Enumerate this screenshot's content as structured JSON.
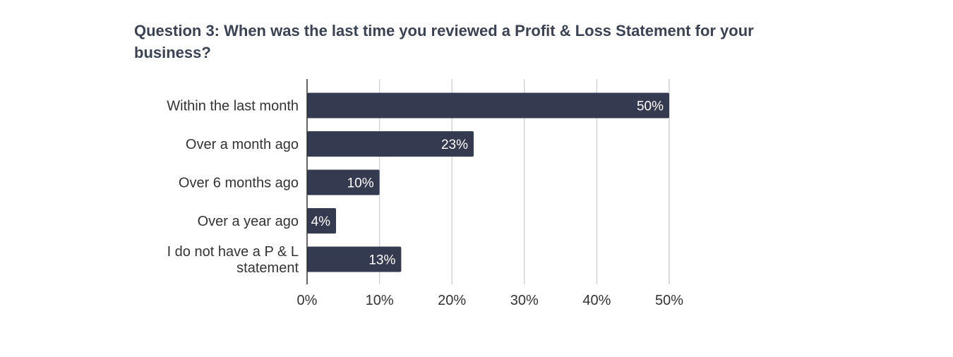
{
  "chart_data": {
    "type": "bar",
    "orientation": "horizontal",
    "title": "Question 3: When was the last time you reviewed a Profit & Loss Statement for your business?",
    "categories": [
      "Within the last month",
      "Over a month ago",
      "Over 6 months ago",
      "Over a year ago",
      "I do not have a P & L statement"
    ],
    "category_lines": [
      [
        "Within the last month"
      ],
      [
        "Over a month ago"
      ],
      [
        "Over 6 months ago"
      ],
      [
        "Over a year ago"
      ],
      [
        "I do not have a P & L",
        "statement"
      ]
    ],
    "values": [
      50,
      23,
      10,
      4,
      13
    ],
    "data_labels": [
      "50%",
      "23%",
      "10%",
      "4%",
      "13%"
    ],
    "xlim": [
      0,
      50
    ],
    "x_ticks": [
      0,
      10,
      20,
      30,
      40,
      50
    ],
    "x_tick_labels": [
      "0%",
      "10%",
      "20%",
      "30%",
      "40%",
      "50%"
    ],
    "xlabel": "",
    "ylabel": "",
    "grid": true,
    "legend": "none",
    "colors": {
      "bar": "#343a4f",
      "grid": "#d4d4d4",
      "axis": "#333333",
      "title": "#3b4253",
      "label": "#333333",
      "data_label": "#ffffff"
    }
  }
}
